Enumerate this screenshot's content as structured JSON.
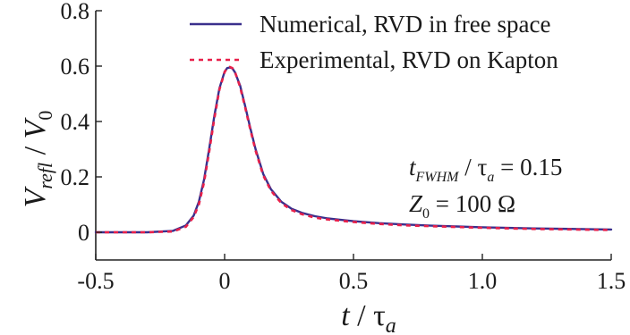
{
  "chart_data": {
    "type": "line",
    "xlabel": {
      "main": "t",
      "sep": " / ",
      "tau": "τ",
      "sub": "a"
    },
    "ylabel": {
      "main": "V",
      "sub": "refl",
      "sep": " / ",
      "main2": "V",
      "sub2": "0"
    },
    "xlim": [
      -0.5,
      1.5
    ],
    "ylim": [
      -0.1,
      0.8
    ],
    "x_ticks": [
      -0.5,
      0,
      0.5,
      1.0,
      1.5
    ],
    "x_tick_labels": [
      "-0.5",
      "0",
      "0.5",
      "1.0",
      "1.5"
    ],
    "y_ticks": [
      0,
      0.2,
      0.4,
      0.6,
      0.8
    ],
    "y_tick_labels": [
      "0",
      "0.2",
      "0.4",
      "0.6",
      "0.8"
    ],
    "grid": false,
    "legend_position": "top-right",
    "series": [
      {
        "name": "Numerical, RVD in free space",
        "color": "#3a2f8c",
        "style": "solid",
        "x": [
          -0.5,
          -0.3,
          -0.2,
          -0.15,
          -0.12,
          -0.1,
          -0.08,
          -0.06,
          -0.04,
          -0.02,
          0.0,
          0.01,
          0.02,
          0.03,
          0.04,
          0.06,
          0.08,
          0.1,
          0.12,
          0.15,
          0.18,
          0.22,
          0.26,
          0.3,
          0.35,
          0.4,
          0.5,
          0.6,
          0.7,
          0.8,
          0.9,
          1.0,
          1.2,
          1.5
        ],
        "y": [
          0.0,
          0.0,
          0.005,
          0.025,
          0.06,
          0.11,
          0.19,
          0.3,
          0.42,
          0.52,
          0.58,
          0.593,
          0.595,
          0.592,
          0.578,
          0.53,
          0.455,
          0.375,
          0.3,
          0.21,
          0.155,
          0.11,
          0.085,
          0.07,
          0.058,
          0.05,
          0.04,
          0.033,
          0.028,
          0.024,
          0.021,
          0.018,
          0.014,
          0.01
        ]
      },
      {
        "name": "Experimental, RVD on Kapton",
        "color": "#e8204a",
        "style": "dashed",
        "x": [
          -0.5,
          -0.3,
          -0.2,
          -0.15,
          -0.12,
          -0.1,
          -0.08,
          -0.06,
          -0.04,
          -0.02,
          0.0,
          0.01,
          0.02,
          0.03,
          0.04,
          0.06,
          0.08,
          0.1,
          0.12,
          0.15,
          0.18,
          0.22,
          0.26,
          0.3,
          0.35,
          0.4,
          0.5,
          0.6,
          0.7,
          0.8,
          0.9,
          1.0,
          1.2,
          1.5
        ],
        "y": [
          0.0,
          0.0,
          0.003,
          0.02,
          0.055,
          0.1,
          0.18,
          0.29,
          0.41,
          0.515,
          0.578,
          0.594,
          0.597,
          0.593,
          0.58,
          0.525,
          0.45,
          0.37,
          0.295,
          0.205,
          0.15,
          0.105,
          0.08,
          0.065,
          0.053,
          0.046,
          0.037,
          0.03,
          0.025,
          0.022,
          0.019,
          0.016,
          0.012,
          0.008
        ]
      }
    ],
    "annotations": [
      {
        "main": "t",
        "sub": "FWHM",
        "sep": " / ",
        "tau": "τ",
        "tau_sub": "a",
        "rest": " = 0.15"
      },
      {
        "main": "Z",
        "sub": "0",
        "rest": " = 100 Ω"
      }
    ]
  }
}
